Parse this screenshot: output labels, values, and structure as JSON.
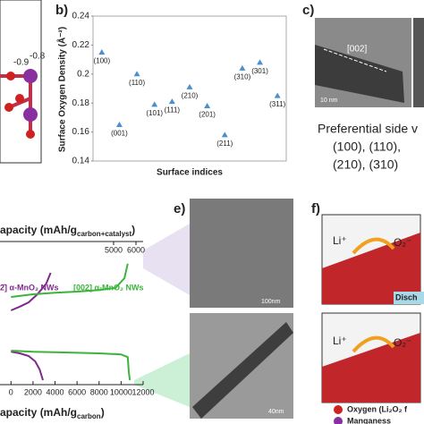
{
  "panel_labels": {
    "b": "b)",
    "c": "c)",
    "e": "e)",
    "f": "f)"
  },
  "panel_a": {
    "charges": [
      "-0.9",
      "-0.8"
    ]
  },
  "panel_c": {
    "direction": "[002]",
    "scale_bar": "10 nm",
    "caption": [
      "Preferential side v",
      "(100), (110),",
      "(210), (310)"
    ]
  },
  "panel_e": {
    "scale_bars": [
      "100nm",
      "40nm"
    ]
  },
  "panel_f": {
    "scenes": [
      {
        "ion": "Li⁺",
        "species": "O₂⁻"
      },
      {
        "ion": "Li⁺",
        "species": "O₂⁻"
      }
    ],
    "tag": "Disch",
    "legend": [
      "Oxygen (Li₂O₂ f",
      "Manganess"
    ]
  },
  "chart_data": [
    {
      "type": "scatter",
      "title": "b)",
      "y_label": "Surface Oxygen Density (Å⁻²)",
      "x_label": "Surface indices",
      "color": "#4a8fd0",
      "categories": [
        "(100)",
        "(001)",
        "(110)",
        "(101)",
        "(111)",
        "(210)",
        "(201)",
        "(211)",
        "(310)",
        "(301)",
        "(311)"
      ],
      "values": [
        0.215,
        0.165,
        0.2,
        0.179,
        0.181,
        0.191,
        0.178,
        0.158,
        0.204,
        0.208,
        0.185
      ],
      "ylim": [
        0.14,
        0.24
      ],
      "yticks": [
        0.14,
        0.16,
        0.18,
        {
          "value": 0.2,
          "label": "0.2"
        },
        0.22,
        0.24
      ]
    },
    {
      "type": "line",
      "x_label": "apacity (mAh/g",
      "x_label_sub": "carbon",
      "x_label_end": ")",
      "x2_label": "apacity (mAh/g",
      "x2_label_sub": "carbon+catalyst",
      "x2_label_end": ")",
      "xlim": [
        -1000,
        12000
      ],
      "xticks": [
        0,
        2000,
        4000,
        6000,
        8000,
        10000,
        12000
      ],
      "x2lim": [
        -80,
        6320
      ],
      "x2ticks": [
        5000,
        6000
      ],
      "ylim": [
        2.0,
        4.5
      ],
      "series": [
        {
          "name": "2̄] α-MnO₂ NWs",
          "color": "#7d2a8c",
          "x": [
            0,
            800,
            1600,
            2200,
            2600,
            2900,
            null,
            0,
            800,
            1600,
            2400,
            3200,
            3600
          ],
          "values": [
            2.78,
            2.75,
            2.7,
            2.6,
            2.45,
            2.25,
            null,
            3.55,
            3.62,
            3.7,
            3.85,
            4.05,
            4.25
          ]
        },
        {
          "name": "[002] α-MnO₂ NWs",
          "color": "#3cb43c",
          "x": [
            0,
            2000,
            4000,
            6000,
            8000,
            10000,
            10600,
            10700,
            10800,
            null,
            0,
            2000,
            4000,
            6000,
            8000,
            9500,
            10300,
            10600
          ],
          "values": [
            2.8,
            2.78,
            2.77,
            2.76,
            2.75,
            2.73,
            2.68,
            2.4,
            2.25,
            null,
            3.8,
            3.85,
            3.88,
            3.9,
            3.93,
            3.97,
            4.15,
            4.42
          ]
        }
      ]
    }
  ]
}
